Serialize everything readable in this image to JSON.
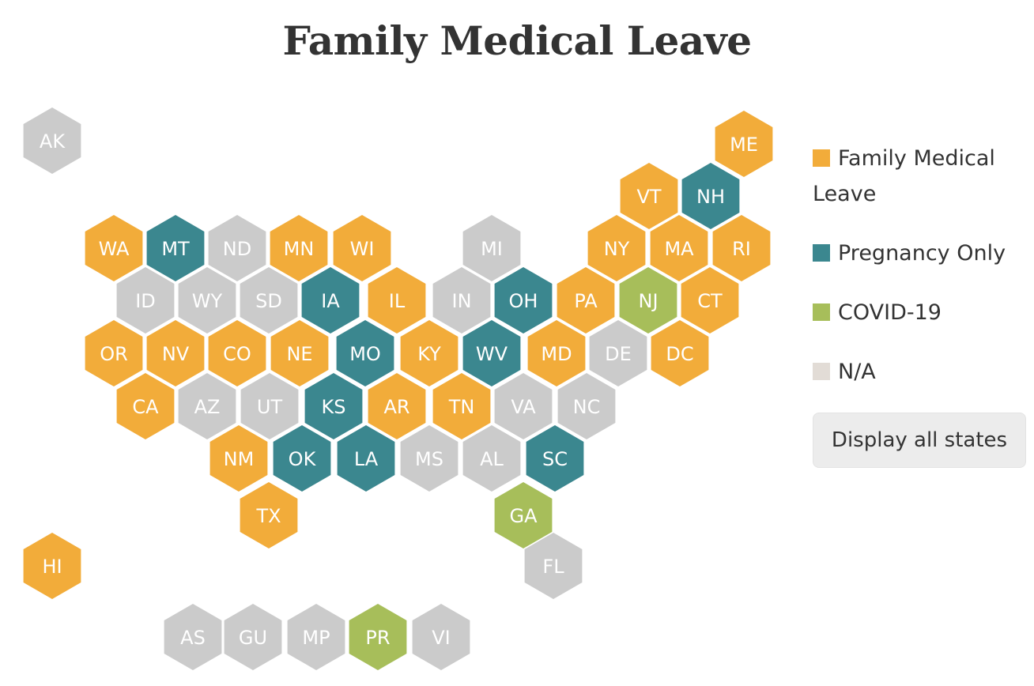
{
  "title": "Family Medical Leave",
  "colors": {
    "family_medical_leave": "#F2AC3A",
    "pregnancy_only": "#3B878F",
    "covid_19": "#A7BE5A",
    "na": "#CBCBCB",
    "na_legend": "#E2DCD6"
  },
  "legend": [
    {
      "label": "Family Medical Leave",
      "category": "family_medical_leave"
    },
    {
      "label": "Pregnancy Only",
      "category": "pregnancy_only"
    },
    {
      "label": "COVID-19",
      "category": "covid_19"
    },
    {
      "label": "N/A",
      "category": "na_legend"
    }
  ],
  "button": {
    "label": "Display all states"
  },
  "states": [
    {
      "code": "AK",
      "category": "na"
    },
    {
      "code": "ME",
      "category": "family_medical_leave"
    },
    {
      "code": "VT",
      "category": "family_medical_leave"
    },
    {
      "code": "NH",
      "category": "pregnancy_only"
    },
    {
      "code": "WA",
      "category": "family_medical_leave"
    },
    {
      "code": "MT",
      "category": "pregnancy_only"
    },
    {
      "code": "ND",
      "category": "na"
    },
    {
      "code": "MN",
      "category": "family_medical_leave"
    },
    {
      "code": "WI",
      "category": "family_medical_leave"
    },
    {
      "code": "MI",
      "category": "na"
    },
    {
      "code": "NY",
      "category": "family_medical_leave"
    },
    {
      "code": "MA",
      "category": "family_medical_leave"
    },
    {
      "code": "RI",
      "category": "family_medical_leave"
    },
    {
      "code": "ID",
      "category": "na"
    },
    {
      "code": "WY",
      "category": "na"
    },
    {
      "code": "SD",
      "category": "na"
    },
    {
      "code": "IA",
      "category": "pregnancy_only"
    },
    {
      "code": "IL",
      "category": "family_medical_leave"
    },
    {
      "code": "IN",
      "category": "na"
    },
    {
      "code": "OH",
      "category": "pregnancy_only"
    },
    {
      "code": "PA",
      "category": "family_medical_leave"
    },
    {
      "code": "NJ",
      "category": "covid_19"
    },
    {
      "code": "CT",
      "category": "family_medical_leave"
    },
    {
      "code": "OR",
      "category": "family_medical_leave"
    },
    {
      "code": "NV",
      "category": "family_medical_leave"
    },
    {
      "code": "CO",
      "category": "family_medical_leave"
    },
    {
      "code": "NE",
      "category": "family_medical_leave"
    },
    {
      "code": "MO",
      "category": "pregnancy_only"
    },
    {
      "code": "KY",
      "category": "family_medical_leave"
    },
    {
      "code": "WV",
      "category": "pregnancy_only"
    },
    {
      "code": "MD",
      "category": "family_medical_leave"
    },
    {
      "code": "DE",
      "category": "na"
    },
    {
      "code": "DC",
      "category": "family_medical_leave"
    },
    {
      "code": "CA",
      "category": "family_medical_leave"
    },
    {
      "code": "AZ",
      "category": "na"
    },
    {
      "code": "UT",
      "category": "na"
    },
    {
      "code": "KS",
      "category": "pregnancy_only"
    },
    {
      "code": "AR",
      "category": "family_medical_leave"
    },
    {
      "code": "TN",
      "category": "family_medical_leave"
    },
    {
      "code": "VA",
      "category": "na"
    },
    {
      "code": "NC",
      "category": "na"
    },
    {
      "code": "NM",
      "category": "family_medical_leave"
    },
    {
      "code": "OK",
      "category": "pregnancy_only"
    },
    {
      "code": "LA",
      "category": "pregnancy_only"
    },
    {
      "code": "MS",
      "category": "na"
    },
    {
      "code": "AL",
      "category": "na"
    },
    {
      "code": "SC",
      "category": "pregnancy_only"
    },
    {
      "code": "TX",
      "category": "family_medical_leave"
    },
    {
      "code": "GA",
      "category": "covid_19"
    },
    {
      "code": "HI",
      "category": "family_medical_leave"
    },
    {
      "code": "FL",
      "category": "na"
    },
    {
      "code": "AS",
      "category": "na"
    },
    {
      "code": "GU",
      "category": "na"
    },
    {
      "code": "MP",
      "category": "na"
    },
    {
      "code": "PR",
      "category": "covid_19"
    },
    {
      "code": "VI",
      "category": "na"
    }
  ]
}
